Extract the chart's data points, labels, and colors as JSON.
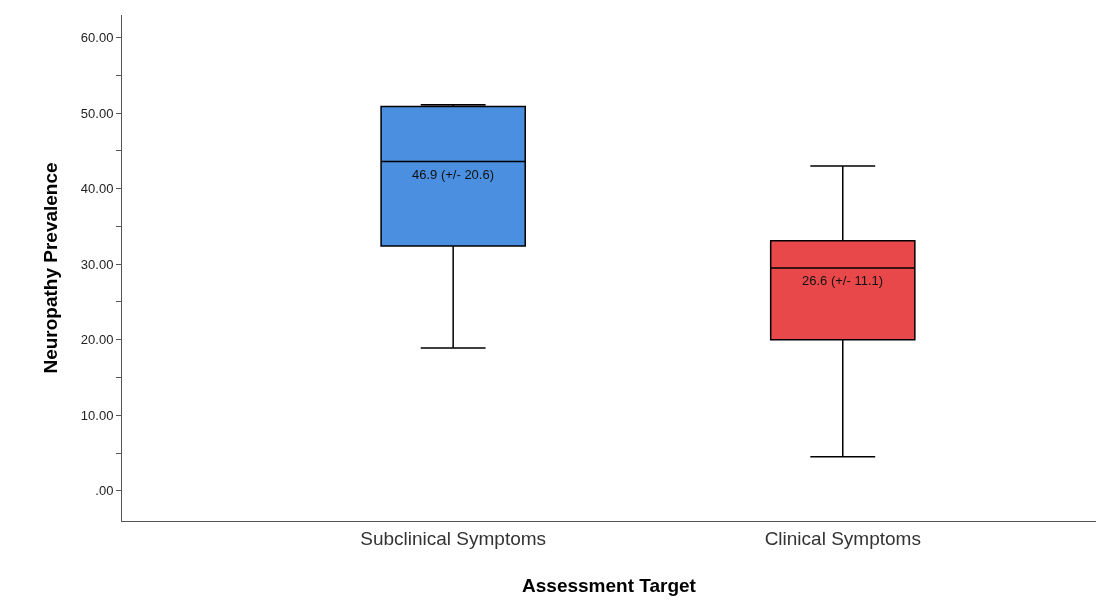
{
  "chart_data": {
    "type": "box",
    "xlabel": "Assessment Target",
    "ylabel": "Neuropathy Prevalence",
    "categories": [
      "Subclinical Symptoms",
      "Clinical Symptoms"
    ],
    "series": [
      {
        "color": "#4a8fe0",
        "boxes": [
          {
            "low": 18.9,
            "q1": 32.4,
            "median": 43.6,
            "q3": 50.9,
            "high": 51.1
          },
          null
        ]
      },
      {
        "color": "#e8484a",
        "boxes": [
          null,
          {
            "low": 4.5,
            "q1": 20,
            "median": 29.5,
            "q3": 33.1,
            "high": 43
          }
        ]
      }
    ],
    "ylim": [
      -4,
      63
    ],
    "yticks": [
      {
        "value": 0,
        "label": ".00"
      },
      {
        "value": 5,
        "label": null
      },
      {
        "value": 10,
        "label": "10.00"
      },
      {
        "value": 15,
        "label": null
      },
      {
        "value": 20,
        "label": "20.00"
      },
      {
        "value": 25,
        "label": null
      },
      {
        "value": 30,
        "label": "30.00"
      },
      {
        "value": 35,
        "label": null
      },
      {
        "value": 40,
        "label": "40.00"
      },
      {
        "value": 45,
        "label": null
      },
      {
        "value": 50,
        "label": "50.00"
      },
      {
        "value": 55,
        "label": null
      },
      {
        "value": 60,
        "label": "60.00"
      }
    ],
    "annotations": [
      "46.9 (+/- 20.6)",
      "26.6 (+/- 11.1)"
    ]
  }
}
